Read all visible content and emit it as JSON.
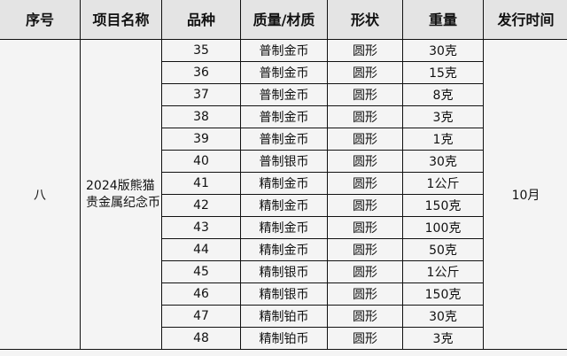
{
  "headers": [
    "序号",
    "项目名称",
    "品种",
    "质量/材质",
    "形状",
    "重量",
    "发行时间"
  ],
  "group": {
    "serial": "八",
    "project": "2024版熊猫贵金属纪念币",
    "date": "10月"
  },
  "rows": [
    [
      "35",
      "普制金币",
      "圆形",
      "30克"
    ],
    [
      "36",
      "普制金币",
      "圆形",
      "15克"
    ],
    [
      "37",
      "普制金币",
      "圆形",
      "8克"
    ],
    [
      "38",
      "普制金币",
      "圆形",
      "3克"
    ],
    [
      "39",
      "普制金币",
      "圆形",
      "1克"
    ],
    [
      "40",
      "普制银币",
      "圆形",
      "30克"
    ],
    [
      "41",
      "精制金币",
      "圆形",
      "1公斤"
    ],
    [
      "42",
      "精制金币",
      "圆形",
      "150克"
    ],
    [
      "43",
      "精制金币",
      "圆形",
      "100克"
    ],
    [
      "44",
      "精制金币",
      "圆形",
      "50克"
    ],
    [
      "45",
      "精制银币",
      "圆形",
      "1公斤"
    ],
    [
      "46",
      "精制银币",
      "圆形",
      "150克"
    ],
    [
      "47",
      "精制铂币",
      "圆形",
      "30克"
    ],
    [
      "48",
      "精制铂币",
      "圆形",
      "3克"
    ]
  ]
}
